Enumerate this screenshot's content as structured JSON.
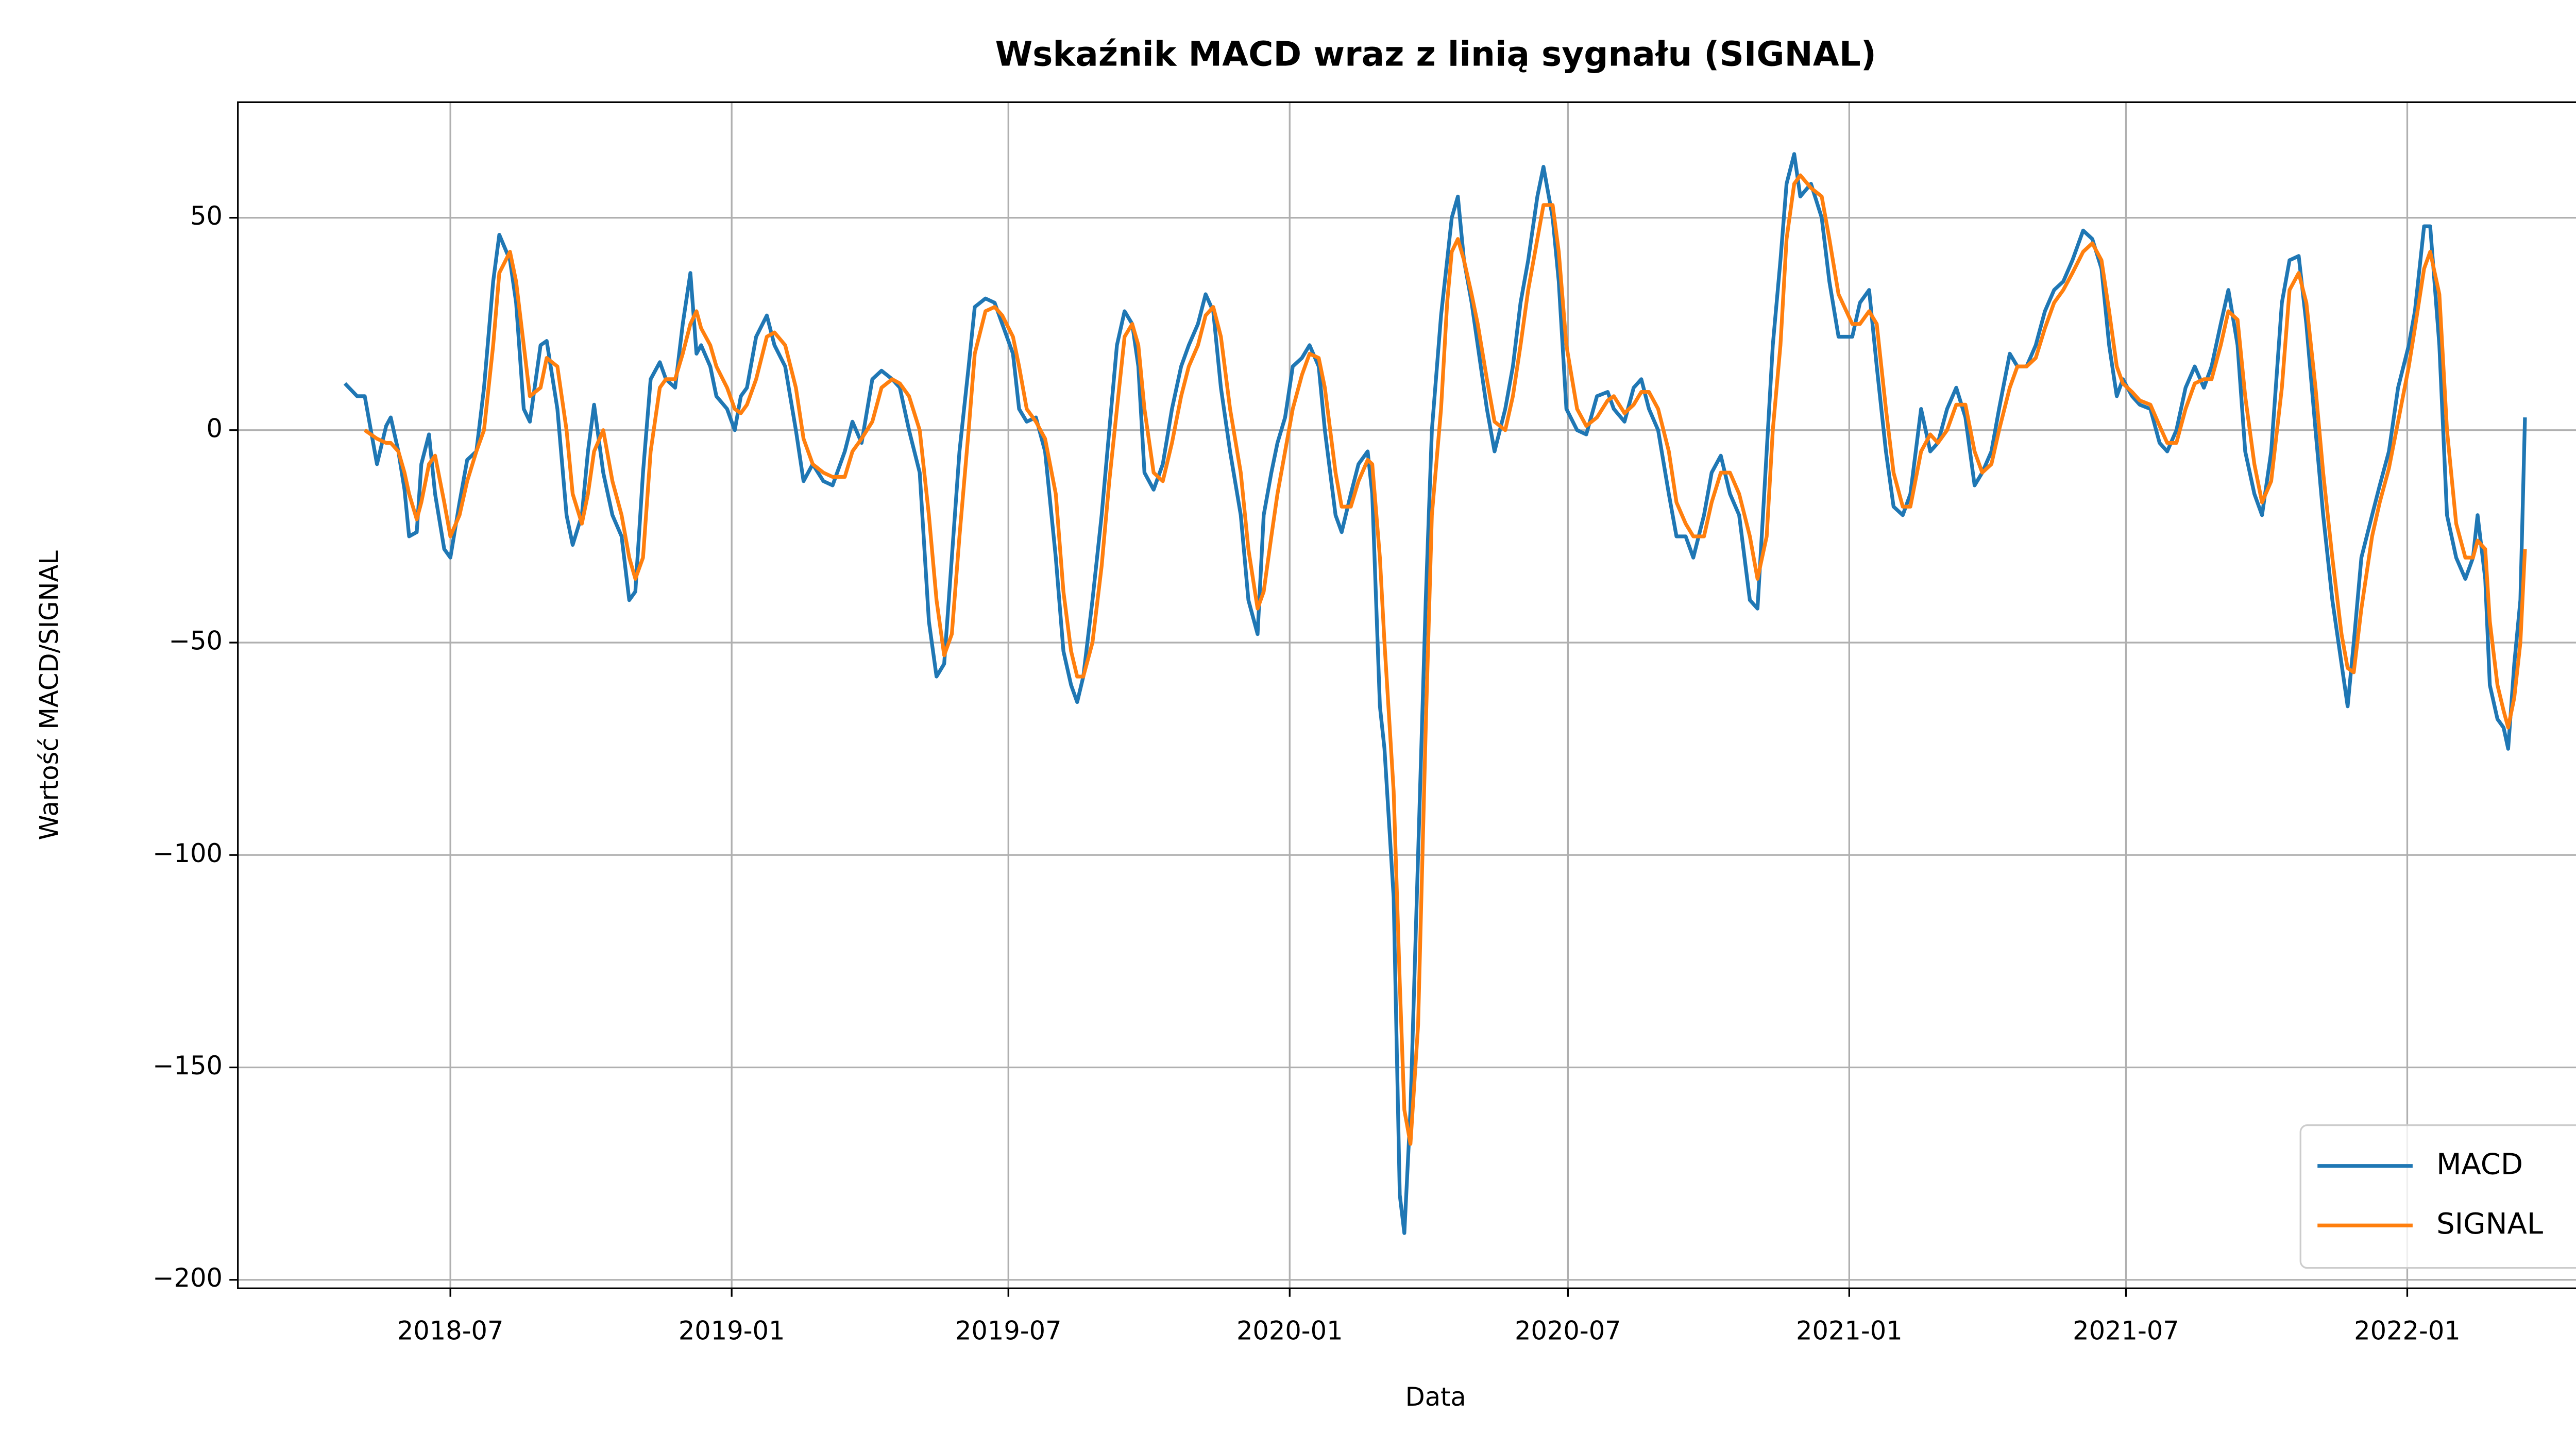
{
  "chart_data": {
    "type": "line",
    "title": "Wskaźnik MACD wraz z linią sygnału (SIGNAL)",
    "x_label": "Data",
    "y_label": "Wartość MACD/SIGNAL",
    "x": [
      "2018-04-23",
      "2018-05-01",
      "2018-05-06",
      "2018-05-14",
      "2018-05-20",
      "2018-05-23",
      "2018-05-28",
      "2018-06-01",
      "2018-06-04",
      "2018-06-09",
      "2018-06-12",
      "2018-06-17",
      "2018-06-21",
      "2018-06-27",
      "2018-07-01",
      "2018-07-07",
      "2018-07-12",
      "2018-07-18",
      "2018-07-23",
      "2018-07-29",
      "2018-08-02",
      "2018-08-09",
      "2018-08-13",
      "2018-08-18",
      "2018-08-22",
      "2018-08-29",
      "2018-09-02",
      "2018-09-09",
      "2018-09-15",
      "2018-09-19",
      "2018-09-25",
      "2018-09-29",
      "2018-10-03",
      "2018-10-09",
      "2018-10-15",
      "2018-10-21",
      "2018-10-26",
      "2018-10-30",
      "2018-11-04",
      "2018-11-09",
      "2018-11-15",
      "2018-11-19",
      "2018-11-25",
      "2018-11-30",
      "2018-12-05",
      "2018-12-09",
      "2018-12-12",
      "2018-12-18",
      "2018-12-22",
      "2018-12-29",
      "2019-01-03",
      "2019-01-07",
      "2019-01-11",
      "2019-01-17",
      "2019-01-24",
      "2019-01-29",
      "2019-02-05",
      "2019-02-12",
      "2019-02-17",
      "2019-02-23",
      "2019-03-02",
      "2019-03-08",
      "2019-03-16",
      "2019-03-21",
      "2019-03-27",
      "2019-04-03",
      "2019-04-09",
      "2019-04-16",
      "2019-04-21",
      "2019-04-27",
      "2019-05-04",
      "2019-05-10",
      "2019-05-15",
      "2019-05-20",
      "2019-05-25",
      "2019-05-30",
      "2019-06-05",
      "2019-06-09",
      "2019-06-16",
      "2019-06-22",
      "2019-06-27",
      "2019-07-04",
      "2019-07-08",
      "2019-07-13",
      "2019-07-19",
      "2019-07-25",
      "2019-08-01",
      "2019-08-06",
      "2019-08-11",
      "2019-08-15",
      "2019-08-19",
      "2019-08-25",
      "2019-08-31",
      "2019-09-05",
      "2019-09-10",
      "2019-09-15",
      "2019-09-20",
      "2019-09-24",
      "2019-09-28",
      "2019-10-04",
      "2019-10-10",
      "2019-10-16",
      "2019-10-22",
      "2019-10-27",
      "2019-11-02",
      "2019-11-07",
      "2019-11-12",
      "2019-11-17",
      "2019-11-23",
      "2019-11-30",
      "2019-12-05",
      "2019-12-11",
      "2019-12-15",
      "2019-12-20",
      "2019-12-24",
      "2019-12-29",
      "2020-01-03",
      "2020-01-09",
      "2020-01-14",
      "2020-01-20",
      "2020-01-24",
      "2020-01-31",
      "2020-02-04",
      "2020-02-10",
      "2020-02-15",
      "2020-02-21",
      "2020-02-24",
      "2020-02-29",
      "2020-03-03",
      "2020-03-09",
      "2020-03-13",
      "2020-03-16",
      "2020-03-20",
      "2020-03-25",
      "2020-03-30",
      "2020-04-03",
      "2020-04-09",
      "2020-04-13",
      "2020-04-16",
      "2020-04-20",
      "2020-04-24",
      "2020-04-29",
      "2020-05-03",
      "2020-05-09",
      "2020-05-14",
      "2020-05-21",
      "2020-05-26",
      "2020-05-31",
      "2020-06-05",
      "2020-06-11",
      "2020-06-15",
      "2020-06-21",
      "2020-06-25",
      "2020-06-30",
      "2020-07-07",
      "2020-07-13",
      "2020-07-20",
      "2020-07-27",
      "2020-07-31",
      "2020-08-07",
      "2020-08-13",
      "2020-08-18",
      "2020-08-23",
      "2020-08-29",
      "2020-09-05",
      "2020-09-10",
      "2020-09-16",
      "2020-09-21",
      "2020-09-28",
      "2020-10-03",
      "2020-10-09",
      "2020-10-15",
      "2020-10-21",
      "2020-10-28",
      "2020-11-02",
      "2020-11-08",
      "2020-11-12",
      "2020-11-17",
      "2020-11-21",
      "2020-11-26",
      "2020-11-30",
      "2020-12-07",
      "2020-12-14",
      "2020-12-19",
      "2020-12-25",
      "2021-01-03",
      "2021-01-08",
      "2021-01-14",
      "2021-01-19",
      "2021-01-25",
      "2021-01-30",
      "2021-02-05",
      "2021-02-10",
      "2021-02-17",
      "2021-02-23",
      "2021-02-28",
      "2021-03-06",
      "2021-03-12",
      "2021-03-18",
      "2021-03-24",
      "2021-03-29",
      "2021-04-04",
      "2021-04-09",
      "2021-04-16",
      "2021-04-21",
      "2021-04-27",
      "2021-05-03",
      "2021-05-09",
      "2021-05-15",
      "2021-05-21",
      "2021-05-27",
      "2021-06-03",
      "2021-06-09",
      "2021-06-15",
      "2021-06-20",
      "2021-06-25",
      "2021-06-29",
      "2021-07-05",
      "2021-07-10",
      "2021-07-17",
      "2021-07-23",
      "2021-07-28",
      "2021-08-03",
      "2021-08-09",
      "2021-08-15",
      "2021-08-21",
      "2021-08-26",
      "2021-09-01",
      "2021-09-06",
      "2021-09-12",
      "2021-09-17",
      "2021-09-23",
      "2021-09-28",
      "2021-10-04",
      "2021-10-11",
      "2021-10-16",
      "2021-10-22",
      "2021-10-27",
      "2021-11-02",
      "2021-11-07",
      "2021-11-13",
      "2021-11-19",
      "2021-11-23",
      "2021-11-27",
      "2021-12-02",
      "2021-12-09",
      "2021-12-14",
      "2021-12-20",
      "2021-12-26",
      "2022-01-02",
      "2022-01-06",
      "2022-01-12",
      "2022-01-16",
      "2022-01-22",
      "2022-01-27",
      "2022-02-02",
      "2022-02-08",
      "2022-02-13",
      "2022-02-16",
      "2022-02-21",
      "2022-02-24",
      "2022-03-01",
      "2022-03-05",
      "2022-03-08",
      "2022-03-12",
      "2022-03-16",
      "2022-03-19"
    ],
    "series": [
      {
        "name": "MACD",
        "color": "#1f77b4",
        "values": [
          11,
          8,
          8,
          -8,
          1,
          3,
          -5,
          -14,
          -25,
          -24,
          -8,
          -1,
          -15,
          -28,
          -30,
          -17,
          -7,
          -5,
          10,
          35,
          46,
          40,
          30,
          5,
          2,
          20,
          21,
          5,
          -20,
          -27,
          -20,
          -5,
          6,
          -10,
          -20,
          -25,
          -40,
          -38,
          -10,
          12,
          16,
          12,
          10,
          25,
          37,
          18,
          20,
          15,
          8,
          5,
          0,
          8,
          10,
          22,
          27,
          20,
          15,
          0,
          -12,
          -8,
          -12,
          -13,
          -5,
          2,
          -3,
          12,
          14,
          12,
          10,
          0,
          -10,
          -45,
          -58,
          -55,
          -30,
          -5,
          15,
          29,
          31,
          30,
          25,
          18,
          5,
          2,
          3,
          -5,
          -30,
          -52,
          -60,
          -64,
          -58,
          -40,
          -20,
          0,
          20,
          28,
          25,
          15,
          -10,
          -14,
          -8,
          5,
          15,
          20,
          25,
          32,
          28,
          10,
          -5,
          -20,
          -40,
          -48,
          -20,
          -10,
          -3,
          3,
          15,
          17,
          20,
          15,
          0,
          -20,
          -24,
          -15,
          -8,
          -5,
          -15,
          -65,
          -75,
          -110,
          -180,
          -189,
          -160,
          -100,
          -40,
          0,
          27,
          40,
          50,
          55,
          40,
          30,
          20,
          5,
          -5,
          5,
          15,
          30,
          40,
          55,
          62,
          50,
          35,
          5,
          0,
          -1,
          8,
          9,
          5,
          2,
          10,
          12,
          5,
          0,
          -15,
          -25,
          -25,
          -30,
          -20,
          -10,
          -6,
          -15,
          -20,
          -40,
          -42,
          -5,
          20,
          40,
          58,
          65,
          55,
          58,
          50,
          35,
          22,
          22,
          30,
          33,
          15,
          -5,
          -18,
          -20,
          -15,
          5,
          -5,
          -3,
          5,
          10,
          3,
          -13,
          -10,
          -5,
          5,
          18,
          15,
          15,
          20,
          28,
          33,
          35,
          40,
          47,
          45,
          38,
          20,
          8,
          12,
          8,
          6,
          5,
          -3,
          -5,
          0,
          10,
          15,
          10,
          15,
          25,
          33,
          20,
          -5,
          -15,
          -20,
          -5,
          30,
          40,
          41,
          25,
          0,
          -20,
          -40,
          -55,
          -65,
          -50,
          -30,
          -20,
          -13,
          -5,
          10,
          20,
          28,
          48,
          48,
          20,
          -20,
          -30,
          -35,
          -30,
          -20,
          -35,
          -60,
          -68,
          -70,
          -75,
          -55,
          -40,
          3
        ]
      },
      {
        "name": "SIGNAL",
        "color": "#ff7f0e",
        "values": [
          null,
          null,
          0,
          -2,
          -3,
          -3,
          -5,
          -10,
          -15,
          -21,
          -17,
          -8,
          -6,
          -17,
          -25,
          -20,
          -12,
          -5,
          0,
          20,
          37,
          42,
          35,
          20,
          8,
          10,
          17,
          15,
          0,
          -15,
          -22,
          -15,
          -5,
          0,
          -12,
          -20,
          -30,
          -35,
          -30,
          -5,
          10,
          12,
          12,
          18,
          25,
          28,
          24,
          20,
          15,
          10,
          5,
          4,
          6,
          12,
          22,
          23,
          20,
          10,
          -2,
          -8,
          -10,
          -11,
          -11,
          -5,
          -2,
          2,
          10,
          12,
          11,
          8,
          0,
          -20,
          -40,
          -53,
          -48,
          -25,
          0,
          18,
          28,
          29,
          27,
          22,
          15,
          5,
          2,
          -2,
          -15,
          -38,
          -52,
          -58,
          -58,
          -50,
          -32,
          -12,
          5,
          22,
          25,
          20,
          5,
          -10,
          -12,
          -3,
          8,
          15,
          20,
          27,
          29,
          22,
          5,
          -10,
          -28,
          -42,
          -38,
          -25,
          -15,
          -5,
          5,
          13,
          18,
          17,
          10,
          -10,
          -18,
          -18,
          -12,
          -7,
          -8,
          -30,
          -50,
          -85,
          -130,
          -160,
          -168,
          -140,
          -70,
          -20,
          5,
          30,
          42,
          45,
          40,
          32,
          25,
          12,
          2,
          0,
          8,
          20,
          33,
          45,
          53,
          53,
          42,
          20,
          5,
          1,
          3,
          7,
          8,
          4,
          6,
          9,
          9,
          5,
          -5,
          -17,
          -22,
          -25,
          -25,
          -17,
          -10,
          -10,
          -15,
          -25,
          -35,
          -25,
          0,
          20,
          45,
          58,
          60,
          57,
          55,
          45,
          32,
          25,
          25,
          28,
          25,
          5,
          -10,
          -18,
          -18,
          -5,
          -1,
          -3,
          0,
          6,
          6,
          -5,
          -10,
          -8,
          0,
          10,
          15,
          15,
          17,
          24,
          30,
          33,
          37,
          42,
          44,
          40,
          28,
          15,
          11,
          9,
          7,
          6,
          1,
          -3,
          -3,
          5,
          11,
          12,
          12,
          20,
          28,
          26,
          8,
          -8,
          -17,
          -12,
          10,
          33,
          37,
          30,
          10,
          -10,
          -30,
          -48,
          -56,
          -57,
          -42,
          -25,
          -17,
          -9,
          2,
          15,
          24,
          38,
          42,
          32,
          0,
          -22,
          -30,
          -30,
          -26,
          -28,
          -45,
          -60,
          -66,
          -70,
          -63,
          -50,
          -28
        ]
      }
    ],
    "xlim": [
      "2018-02-12",
      "2022-05-29"
    ],
    "xticks": [
      "2018-07",
      "2019-01",
      "2019-07",
      "2020-01",
      "2020-07",
      "2021-01",
      "2021-07",
      "2022-01"
    ],
    "ylim": [
      -202,
      77.2
    ],
    "yticks": [
      {
        "value": -200,
        "label": "−200"
      },
      {
        "value": -150,
        "label": "−150"
      },
      {
        "value": -100,
        "label": "−100"
      },
      {
        "value": -50,
        "label": "−50"
      },
      0,
      50
    ],
    "grid": true,
    "legend": "lower right"
  }
}
